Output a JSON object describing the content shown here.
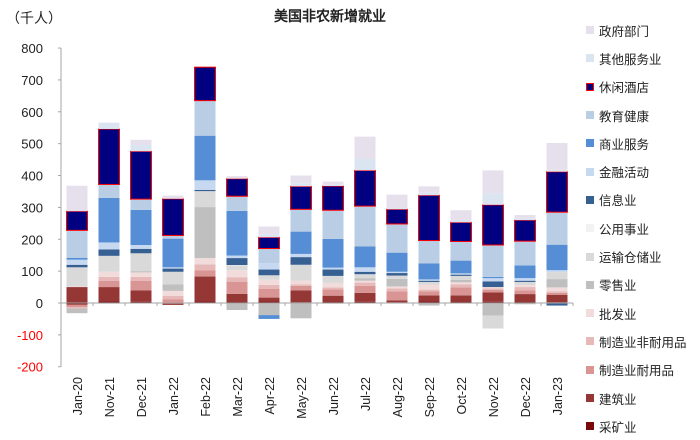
{
  "header": {
    "unit": "（千人）",
    "title": "美国非农新增就业"
  },
  "chart_data": {
    "type": "bar",
    "stacked": true,
    "title": "美国非农新增就业",
    "xlabel": "",
    "ylabel": "（千人）",
    "ylim": [
      -200,
      800
    ],
    "yticks": [
      800,
      700,
      600,
      500,
      400,
      300,
      200,
      100,
      0,
      -100,
      -200
    ],
    "negative_tick_color": "#ff0000",
    "grid": false,
    "legend_position": "right",
    "categories": [
      "Jan-20",
      "Nov-21",
      "Dec-21",
      "Jan-22",
      "Feb-22",
      "Mar-22",
      "Apr-22",
      "May-22",
      "Jun-22",
      "Jul-22",
      "Aug-22",
      "Sep-22",
      "Oct-22",
      "Nov-22",
      "Dec-22",
      "Jan-23"
    ],
    "series": [
      {
        "name": "采矿业",
        "color": "#7a0a0a",
        "values": [
          -5,
          5,
          4,
          -2,
          5,
          3,
          5,
          2,
          3,
          4,
          2,
          5,
          3,
          4,
          3,
          2
        ]
      },
      {
        "name": "建筑业",
        "color": "#953735",
        "values": [
          50,
          45,
          36,
          -4,
          78,
          26,
          12,
          38,
          20,
          28,
          6,
          19,
          21,
          29,
          25,
          24
        ]
      },
      {
        "name": "制造业耐用品",
        "color": "#d99594",
        "values": [
          -8,
          20,
          30,
          12,
          20,
          38,
          28,
          14,
          20,
          22,
          28,
          12,
          25,
          8,
          12,
          6
        ]
      },
      {
        "name": "制造业非耐用品",
        "color": "#e6b9b8",
        "values": [
          -4,
          12,
          12,
          10,
          18,
          14,
          12,
          4,
          6,
          10,
          10,
          6,
          10,
          5,
          10,
          5
        ]
      },
      {
        "name": "批发业",
        "color": "#f2dcdb",
        "values": [
          2,
          16,
          14,
          16,
          20,
          22,
          16,
          12,
          14,
          6,
          6,
          16,
          6,
          4,
          6,
          12
        ]
      },
      {
        "name": "零售业",
        "color": "#bfbfbf",
        "values": [
          -15,
          -2,
          4,
          20,
          160,
          -22,
          -38,
          -48,
          -2,
          8,
          24,
          -8,
          8,
          -40,
          -4,
          26
        ]
      },
      {
        "name": "运输仓储业",
        "color": "#d9d9d9",
        "values": [
          60,
          50,
          56,
          40,
          50,
          14,
          14,
          50,
          22,
          10,
          10,
          8,
          12,
          -40,
          10,
          22
        ]
      },
      {
        "name": "公用事业",
        "color": "#f2f2f2",
        "values": [
          0,
          0,
          0,
          0,
          0,
          2,
          0,
          0,
          0,
          2,
          0,
          0,
          0,
          0,
          0,
          0
        ]
      },
      {
        "name": "信息业",
        "color": "#376092",
        "values": [
          8,
          20,
          14,
          10,
          4,
          22,
          18,
          24,
          20,
          8,
          8,
          4,
          4,
          18,
          4,
          -8
        ]
      },
      {
        "name": "金融活动",
        "color": "#c6d9f1",
        "values": [
          16,
          22,
          12,
          4,
          30,
          8,
          20,
          10,
          6,
          14,
          4,
          4,
          4,
          10,
          8,
          6
        ]
      },
      {
        "name": "商业服务",
        "color": "#558ed5",
        "values": [
          6,
          140,
          110,
          90,
          140,
          140,
          -12,
          70,
          90,
          66,
          60,
          50,
          40,
          4,
          40,
          80
        ]
      },
      {
        "name": "教育健康",
        "color": "#b9cde5",
        "values": [
          86,
          42,
          34,
          10,
          110,
          46,
          46,
          70,
          90,
          126,
          90,
          72,
          60,
          100,
          76,
          102
        ]
      },
      {
        "name": "休闲酒店",
        "color": "#000080",
        "values": [
          60,
          174,
          150,
          115,
          105,
          55,
          35,
          72,
          76,
          112,
          46,
          142,
          60,
          126,
          66,
          127
        ]
      },
      {
        "name": "其他服务业",
        "color": "#dbe5f1",
        "values": [
          0,
          20,
          20,
          0,
          0,
          0,
          10,
          10,
          4,
          36,
          4,
          8,
          8,
          36,
          6,
          6
        ]
      },
      {
        "name": "政府部门",
        "color": "#e5e0ec",
        "values": [
          80,
          0,
          16,
          10,
          0,
          8,
          24,
          24,
          10,
          70,
          42,
          20,
          30,
          72,
          10,
          84
        ]
      }
    ]
  },
  "legend": [
    {
      "label": "政府部门",
      "color": "#e5e0ec",
      "outline": ""
    },
    {
      "label": "其他服务业",
      "color": "#dbe5f1",
      "outline": ""
    },
    {
      "label": "休闲酒店",
      "color": "#000080",
      "outline": "#ff0000"
    },
    {
      "label": "教育健康",
      "color": "#b9cde5",
      "outline": ""
    },
    {
      "label": "商业服务",
      "color": "#558ed5",
      "outline": ""
    },
    {
      "label": "金融活动",
      "color": "#c6d9f1",
      "outline": ""
    },
    {
      "label": "信息业",
      "color": "#376092",
      "outline": ""
    },
    {
      "label": "公用事业",
      "color": "#f2f2f2",
      "outline": ""
    },
    {
      "label": "运输仓储业",
      "color": "#d9d9d9",
      "outline": ""
    },
    {
      "label": "零售业",
      "color": "#bfbfbf",
      "outline": ""
    },
    {
      "label": "批发业",
      "color": "#f2dcdb",
      "outline": ""
    },
    {
      "label": "制造业非耐用品",
      "color": "#e6b9b8",
      "outline": ""
    },
    {
      "label": "制造业耐用品",
      "color": "#d99594",
      "outline": ""
    },
    {
      "label": "建筑业",
      "color": "#953735",
      "outline": ""
    },
    {
      "label": "采矿业",
      "color": "#7a0a0a",
      "outline": ""
    }
  ]
}
